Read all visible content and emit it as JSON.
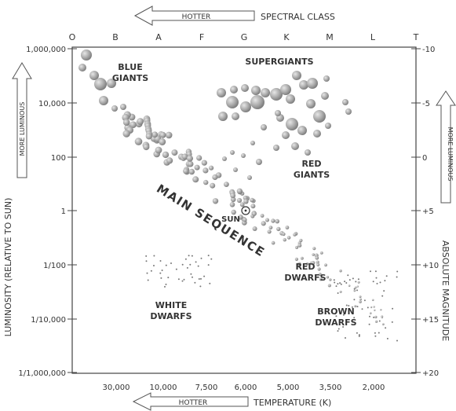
{
  "top": {
    "arrow_label": "HOTTER",
    "axis_title": "SPECTRAL CLASS",
    "classes": [
      "O",
      "B",
      "A",
      "F",
      "G",
      "K",
      "M",
      "L",
      "T"
    ]
  },
  "bottom": {
    "arrow_label": "HOTTER",
    "axis_title": "TEMPERATURE (K)",
    "ticks": [
      "30,000",
      "10,000",
      "7,500",
      "6,000",
      "5,000",
      "3,500",
      "2,000"
    ]
  },
  "left": {
    "axis_title": "LUMINOSITY (RELATIVE TO SUN)",
    "arrow_label": "MORE LUMINOUS",
    "ticks": [
      "1,000,000",
      "10,000",
      "100",
      "1",
      "1/100",
      "1/10,000",
      "1/1,000,000"
    ]
  },
  "right": {
    "axis_title": "ABSOLUTE MAGNITUDE",
    "arrow_label": "MORE LUMINOUS",
    "ticks": [
      "-10",
      "-5",
      "0",
      "+5",
      "+10",
      "+15",
      "+20"
    ]
  },
  "regions": {
    "blue_giants": [
      "BLUE",
      "GIANTS"
    ],
    "supergiants": "SUPERGIANTS",
    "red_giants": [
      "RED",
      "GIANTS"
    ],
    "main_sequence": "MAIN SEQUENCE",
    "sun": "SUN",
    "red_dwarfs": [
      "RED",
      "DWARFS"
    ],
    "white_dwarfs": [
      "WHITE",
      "DWARFS"
    ],
    "brown_dwarfs": [
      "BROWN",
      "DWARFS"
    ]
  },
  "colors": {
    "star_light": "#e6e6e6",
    "star_dark": "#6f6f6f",
    "ink": "#333333"
  }
}
